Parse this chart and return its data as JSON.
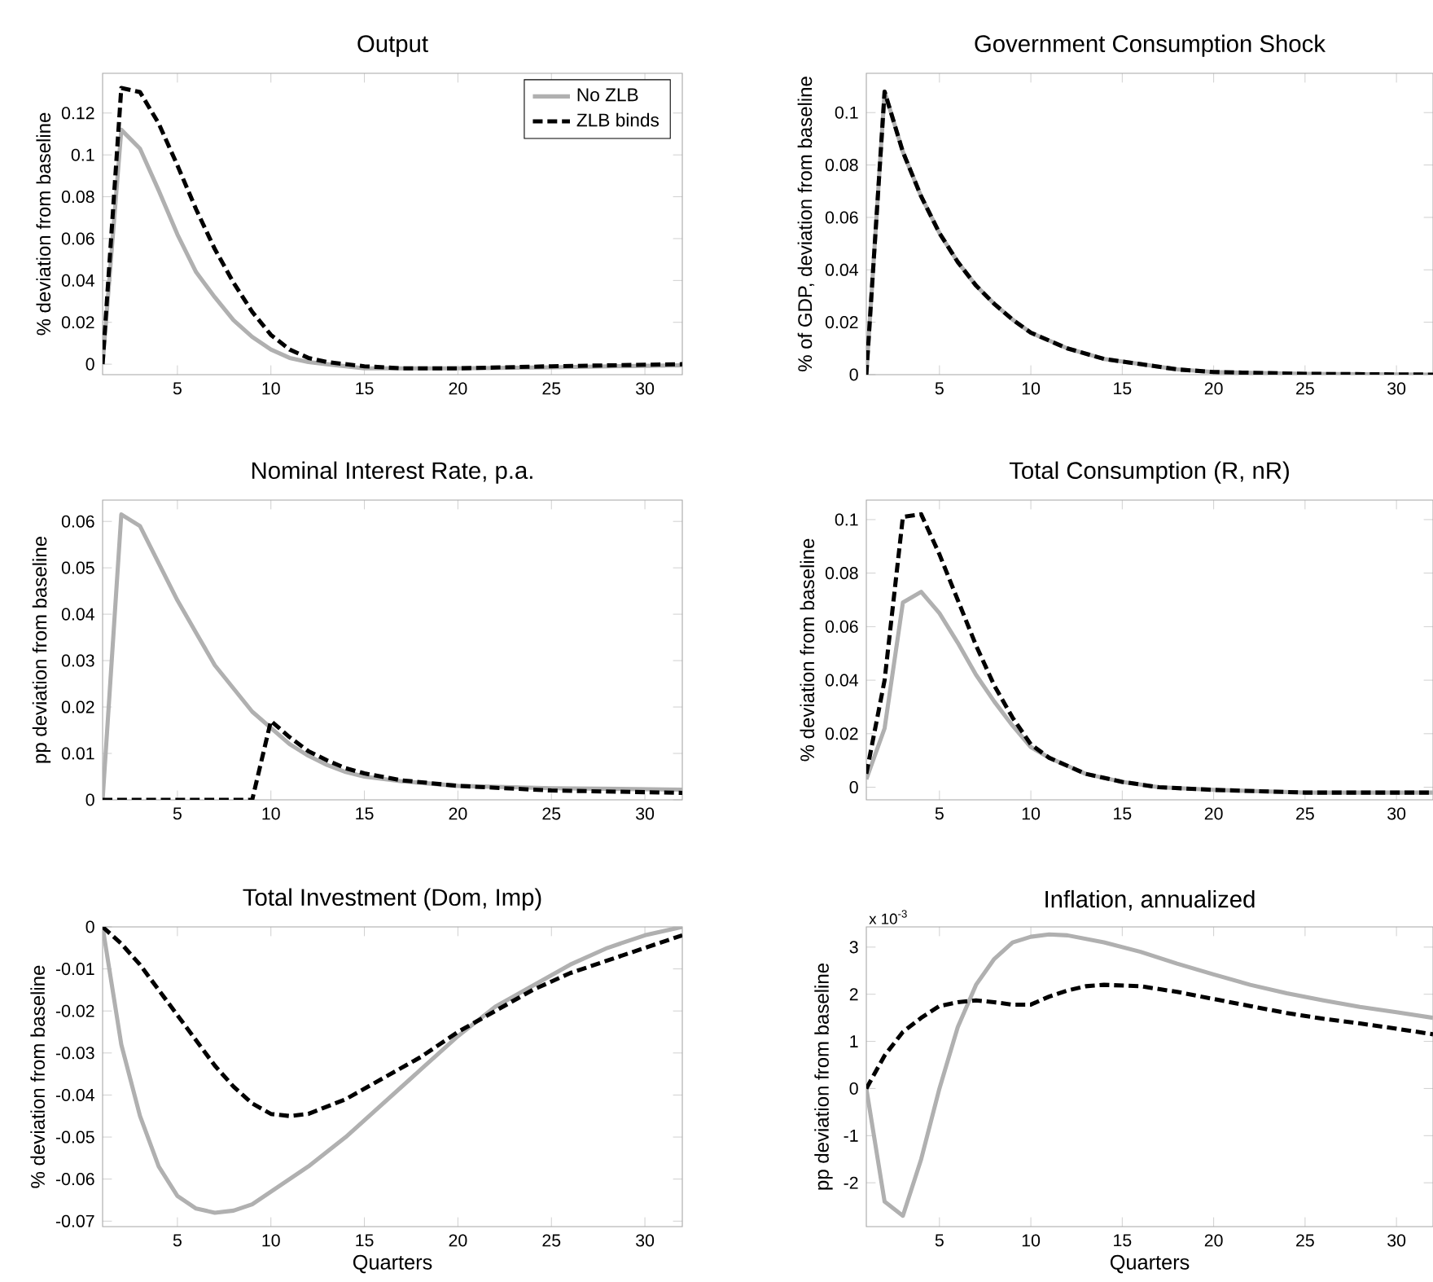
{
  "chart_data": [
    {
      "type": "line",
      "title": "Output",
      "ylabel": "% deviation from baseline",
      "xlim": [
        1,
        32
      ],
      "ylim": [
        -0.005,
        0.139
      ],
      "xticks": [
        5,
        10,
        15,
        20,
        25,
        30
      ],
      "yticks": [
        0,
        0.02,
        0.04,
        0.06,
        0.08,
        0.1,
        0.12
      ],
      "legend": "top right",
      "series": [
        {
          "name": "No ZLB",
          "color": "#b0b0b0",
          "line_style": "solid",
          "x": [
            1,
            2,
            3,
            4,
            5,
            6,
            7,
            8,
            9,
            10,
            11,
            12,
            13,
            15,
            17,
            20,
            25,
            32
          ],
          "values": [
            0,
            0.112,
            0.103,
            0.083,
            0.062,
            0.044,
            0.032,
            0.021,
            0.013,
            0.007,
            0.003,
            0.001,
            0,
            -0.002,
            -0.002,
            -0.002,
            -0.0015,
            -0.0005
          ]
        },
        {
          "name": "ZLB binds",
          "color": "#000000",
          "line_style": "dashed",
          "x": [
            1,
            2,
            3,
            4,
            5,
            6,
            7,
            8,
            9,
            10,
            11,
            12,
            13,
            15,
            17,
            20,
            25,
            32
          ],
          "values": [
            0,
            0.132,
            0.13,
            0.115,
            0.095,
            0.074,
            0.055,
            0.039,
            0.025,
            0.014,
            0.007,
            0.003,
            0.001,
            -0.001,
            -0.002,
            -0.002,
            -0.001,
            0
          ]
        }
      ]
    },
    {
      "type": "line",
      "title": "Government Consumption Shock",
      "ylabel": "% of GDP, deviation from baseline",
      "xlim": [
        1,
        32
      ],
      "ylim": [
        0,
        0.115
      ],
      "xticks": [
        5,
        10,
        15,
        20,
        25,
        30
      ],
      "yticks": [
        0,
        0.02,
        0.04,
        0.06,
        0.08,
        0.1
      ],
      "series": [
        {
          "color": "#b0b0b0",
          "line_style": "solid",
          "x": [
            1,
            2,
            3,
            4,
            5,
            6,
            7,
            8,
            9,
            10,
            12,
            14,
            16,
            18,
            20,
            25,
            32
          ],
          "values": [
            0,
            0.108,
            0.085,
            0.068,
            0.054,
            0.043,
            0.034,
            0.027,
            0.021,
            0.016,
            0.01,
            0.006,
            0.004,
            0.002,
            0.001,
            0.0003,
            0
          ]
        },
        {
          "color": "#000000",
          "line_style": "dashed",
          "x": [
            1,
            2,
            3,
            4,
            5,
            6,
            7,
            8,
            9,
            10,
            12,
            14,
            16,
            18,
            20,
            25,
            32
          ],
          "values": [
            0,
            0.108,
            0.085,
            0.068,
            0.054,
            0.043,
            0.034,
            0.027,
            0.021,
            0.016,
            0.01,
            0.006,
            0.004,
            0.002,
            0.001,
            0.0003,
            0
          ]
        }
      ]
    },
    {
      "type": "line",
      "title": "Nominal Interest Rate, p.a.",
      "ylabel": "pp deviation from baseline",
      "xlim": [
        1,
        32
      ],
      "ylim": [
        0,
        0.0646
      ],
      "xticks": [
        5,
        10,
        15,
        20,
        25,
        30
      ],
      "yticks": [
        0,
        0.01,
        0.02,
        0.03,
        0.04,
        0.05,
        0.06
      ],
      "series": [
        {
          "color": "#b0b0b0",
          "line_style": "solid",
          "x": [
            1,
            2,
            3,
            4,
            5,
            6,
            7,
            8,
            9,
            10,
            11,
            12,
            13,
            14,
            15,
            17,
            20,
            25,
            32
          ],
          "values": [
            0,
            0.0615,
            0.059,
            0.051,
            0.043,
            0.036,
            0.029,
            0.024,
            0.019,
            0.0155,
            0.012,
            0.0095,
            0.0075,
            0.006,
            0.005,
            0.004,
            0.003,
            0.0025,
            0.0022
          ]
        },
        {
          "color": "#000000",
          "line_style": "dashed",
          "x": [
            1,
            9,
            10,
            11,
            12,
            13,
            14,
            15,
            17,
            20,
            25,
            32
          ],
          "values": [
            0,
            0,
            0.017,
            0.0135,
            0.0105,
            0.0085,
            0.0068,
            0.0057,
            0.0042,
            0.003,
            0.002,
            0.0015
          ]
        }
      ]
    },
    {
      "type": "line",
      "title": "Total Consumption (R, nR)",
      "ylabel": "% deviation from baseline",
      "xlim": [
        1,
        32
      ],
      "ylim": [
        -0.0047,
        0.1073
      ],
      "xticks": [
        5,
        10,
        15,
        20,
        25,
        30
      ],
      "yticks": [
        0,
        0.02,
        0.04,
        0.06,
        0.08,
        0.1
      ],
      "series": [
        {
          "color": "#b0b0b0",
          "line_style": "solid",
          "x": [
            1,
            2,
            3,
            4,
            5,
            6,
            7,
            8,
            9,
            10,
            11,
            12,
            13,
            15,
            17,
            20,
            25,
            32
          ],
          "values": [
            0.003,
            0.022,
            0.069,
            0.073,
            0.065,
            0.054,
            0.042,
            0.032,
            0.023,
            0.015,
            0.011,
            0.008,
            0.005,
            0.002,
            0,
            -0.001,
            -0.002,
            -0.002
          ]
        },
        {
          "color": "#000000",
          "line_style": "dashed",
          "x": [
            1,
            2,
            3,
            4,
            5,
            6,
            7,
            8,
            9,
            10,
            11,
            12,
            13,
            15,
            17,
            20,
            25,
            32
          ],
          "values": [
            0.005,
            0.04,
            0.101,
            0.102,
            0.087,
            0.07,
            0.053,
            0.038,
            0.026,
            0.016,
            0.011,
            0.008,
            0.005,
            0.002,
            0,
            -0.001,
            -0.002,
            -0.002
          ]
        }
      ]
    },
    {
      "type": "line",
      "title": "Total Investment (Dom, Imp)",
      "ylabel": "% deviation from baseline",
      "xlabel": "Quarters",
      "xlim": [
        1,
        32
      ],
      "ylim": [
        -0.0713,
        0
      ],
      "xticks": [
        5,
        10,
        15,
        20,
        25,
        30
      ],
      "yticks": [
        -0.07,
        -0.06,
        -0.05,
        -0.04,
        -0.03,
        -0.02,
        -0.01,
        0
      ],
      "series": [
        {
          "color": "#b0b0b0",
          "line_style": "solid",
          "x": [
            1,
            2,
            3,
            4,
            5,
            6,
            7,
            8,
            9,
            10,
            12,
            14,
            16,
            18,
            20,
            22,
            24,
            26,
            28,
            30,
            32
          ],
          "values": [
            0,
            -0.028,
            -0.045,
            -0.057,
            -0.064,
            -0.067,
            -0.068,
            -0.0675,
            -0.066,
            -0.063,
            -0.057,
            -0.05,
            -0.042,
            -0.034,
            -0.026,
            -0.019,
            -0.014,
            -0.009,
            -0.005,
            -0.002,
            0
          ]
        },
        {
          "color": "#000000",
          "line_style": "dashed",
          "x": [
            1,
            2,
            3,
            4,
            5,
            6,
            7,
            8,
            9,
            10,
            11,
            12,
            14,
            16,
            18,
            20,
            22,
            24,
            26,
            28,
            30,
            32
          ],
          "values": [
            0,
            -0.004,
            -0.009,
            -0.015,
            -0.021,
            -0.027,
            -0.033,
            -0.038,
            -0.042,
            -0.0445,
            -0.045,
            -0.0445,
            -0.041,
            -0.036,
            -0.031,
            -0.025,
            -0.02,
            -0.015,
            -0.011,
            -0.008,
            -0.005,
            -0.002
          ]
        }
      ]
    },
    {
      "type": "line",
      "title": "Inflation, annualized",
      "ylabel": "pp deviation from baseline",
      "xlabel": "Quarters",
      "annotations": [
        "x 10$^{-3}$"
      ],
      "xlim": [
        1,
        32
      ],
      "ylim": [
        -2.93,
        3.43
      ],
      "xticks": [
        5,
        10,
        15,
        20,
        25,
        30
      ],
      "yticks": [
        -2,
        -1,
        0,
        1,
        2,
        3
      ],
      "series": [
        {
          "color": "#b0b0b0",
          "line_style": "solid",
          "x": [
            1,
            2,
            3,
            4,
            5,
            6,
            7,
            8,
            9,
            10,
            11,
            12,
            14,
            16,
            18,
            20,
            22,
            24,
            26,
            28,
            30,
            32
          ],
          "values": [
            0,
            -2.4,
            -2.7,
            -1.5,
            0,
            1.3,
            2.2,
            2.75,
            3.1,
            3.22,
            3.27,
            3.25,
            3.1,
            2.9,
            2.65,
            2.42,
            2.2,
            2.02,
            1.87,
            1.73,
            1.62,
            1.5
          ]
        },
        {
          "color": "#000000",
          "line_style": "dashed",
          "x": [
            1,
            2,
            3,
            4,
            5,
            6,
            7,
            8,
            9,
            10,
            11,
            12,
            13,
            14,
            16,
            18,
            20,
            22,
            24,
            26,
            28,
            30,
            32
          ],
          "values": [
            0,
            0.7,
            1.2,
            1.5,
            1.75,
            1.83,
            1.87,
            1.83,
            1.78,
            1.78,
            1.95,
            2.08,
            2.17,
            2.2,
            2.17,
            2.05,
            1.9,
            1.75,
            1.6,
            1.48,
            1.38,
            1.27,
            1.15
          ]
        }
      ]
    }
  ]
}
